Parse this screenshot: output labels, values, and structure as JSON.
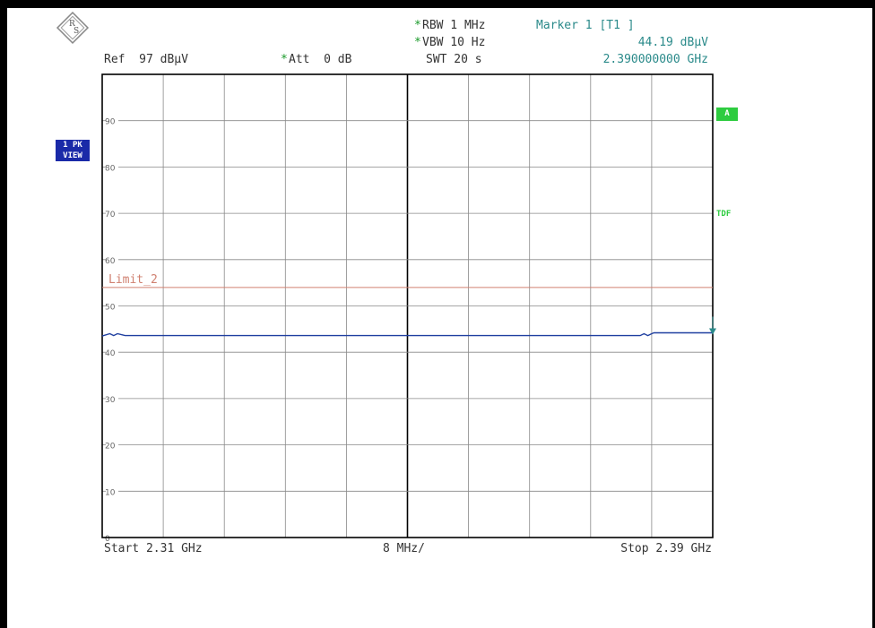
{
  "header": {
    "rbw_star": "*",
    "rbw": "RBW 1 MHz",
    "vbw_star": "*",
    "vbw": "VBW 10 Hz",
    "swt": "SWT 20 s",
    "ref": "Ref  97 dBµV",
    "att_star": "*",
    "att": "Att  0 dB",
    "marker_title": "Marker 1 [T1 ]",
    "marker_level": "44.19 dBµV",
    "marker_freq": "2.390000000 GHz"
  },
  "side": {
    "trace_badge_line1": "1 PK",
    "trace_badge_line2": "VIEW",
    "badge_a": "A",
    "tdf": "TDF"
  },
  "footer": {
    "start": "Start 2.31 GHz",
    "span_div": "8 MHz/",
    "stop": "Stop 2.39 GHz"
  },
  "colors": {
    "trace": "#1f3fa0",
    "limit": "#d08070",
    "grid": "#888888",
    "marker": "#2a8a8a",
    "accent_green": "#2ecc40",
    "badge_blue": "#1a2aa8"
  },
  "chart_data": {
    "type": "line",
    "x_unit": "GHz",
    "y_unit": "dBµV",
    "xlim": [
      2.31,
      2.39
    ],
    "ylim": [
      0,
      100
    ],
    "y_ticks": [
      0,
      10,
      20,
      30,
      40,
      50,
      60,
      70,
      80,
      90
    ],
    "y_tick_labels": [
      "0",
      "10",
      "20",
      "30",
      "40",
      "50",
      "60",
      "70",
      "80",
      "90"
    ],
    "grid": true,
    "limit_line": {
      "name": "Limit_2",
      "value": 54
    },
    "series": [
      {
        "x": [
          2.31,
          2.311,
          2.3115,
          2.312,
          2.313,
          2.33,
          2.35,
          2.37,
          2.3805,
          2.381,
          2.3815,
          2.382,
          2.3823,
          2.39
        ],
        "y": [
          43.5,
          44.0,
          43.6,
          44.0,
          43.6,
          43.6,
          43.6,
          43.6,
          43.6,
          44.0,
          43.6,
          44.0,
          44.2,
          44.19
        ]
      }
    ],
    "marker": {
      "x": 2.39,
      "y": 44.19
    }
  }
}
